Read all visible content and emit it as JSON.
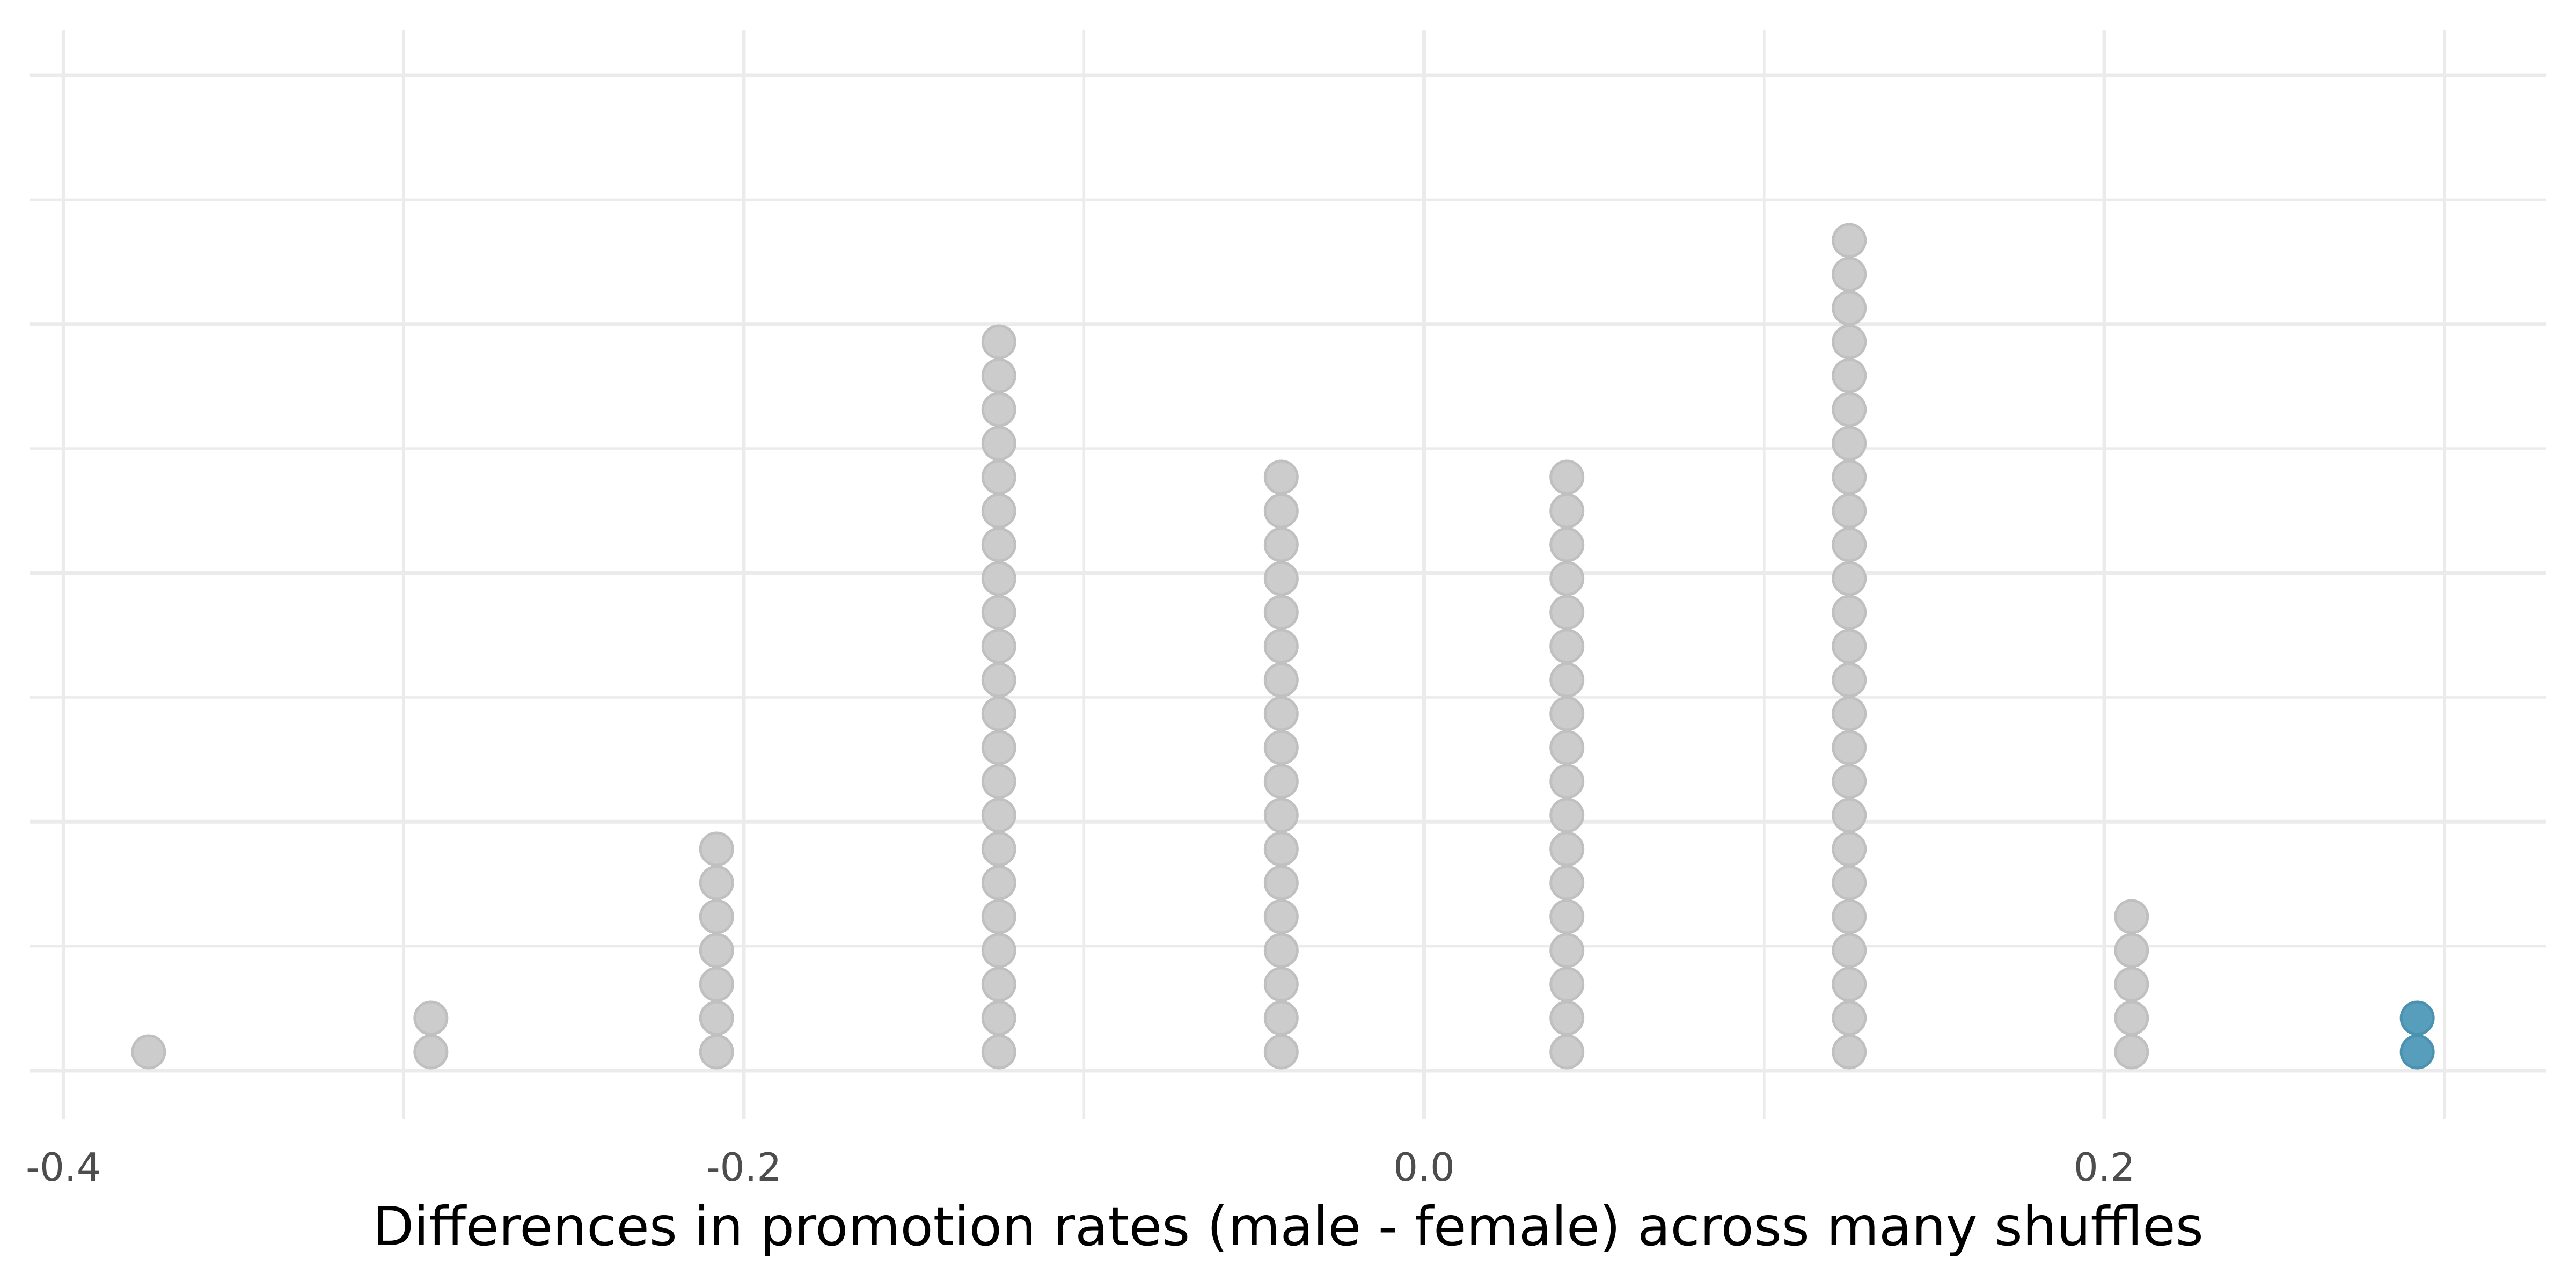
{
  "chart_data": {
    "type": "dotplot",
    "xlabel": "Differences in promotion rates (male - female) across many shuffles",
    "ylabel": "",
    "xlim": [
      -0.41,
      0.33
    ],
    "x_ticks": [
      -0.4,
      -0.2,
      0.0,
      0.2
    ],
    "x_tick_labels": [
      "-0.4",
      "-0.2",
      "0.0",
      "0.2"
    ],
    "grid": true,
    "dot_color": "#cccccc",
    "dot_stroke": "#c0c0c0",
    "highlight_color": "#569ebc",
    "highlight_stroke": "#4a92b0",
    "series": [
      {
        "x": -0.375,
        "count": 1,
        "highlight": false
      },
      {
        "x": -0.292,
        "count": 2,
        "highlight": false
      },
      {
        "x": -0.208,
        "count": 7,
        "highlight": false
      },
      {
        "x": -0.125,
        "count": 22,
        "highlight": false
      },
      {
        "x": -0.042,
        "count": 18,
        "highlight": false
      },
      {
        "x": 0.042,
        "count": 18,
        "highlight": false
      },
      {
        "x": 0.125,
        "count": 25,
        "highlight": false
      },
      {
        "x": 0.208,
        "count": 5,
        "highlight": false
      },
      {
        "x": 0.292,
        "count": 2,
        "highlight": true
      }
    ]
  }
}
